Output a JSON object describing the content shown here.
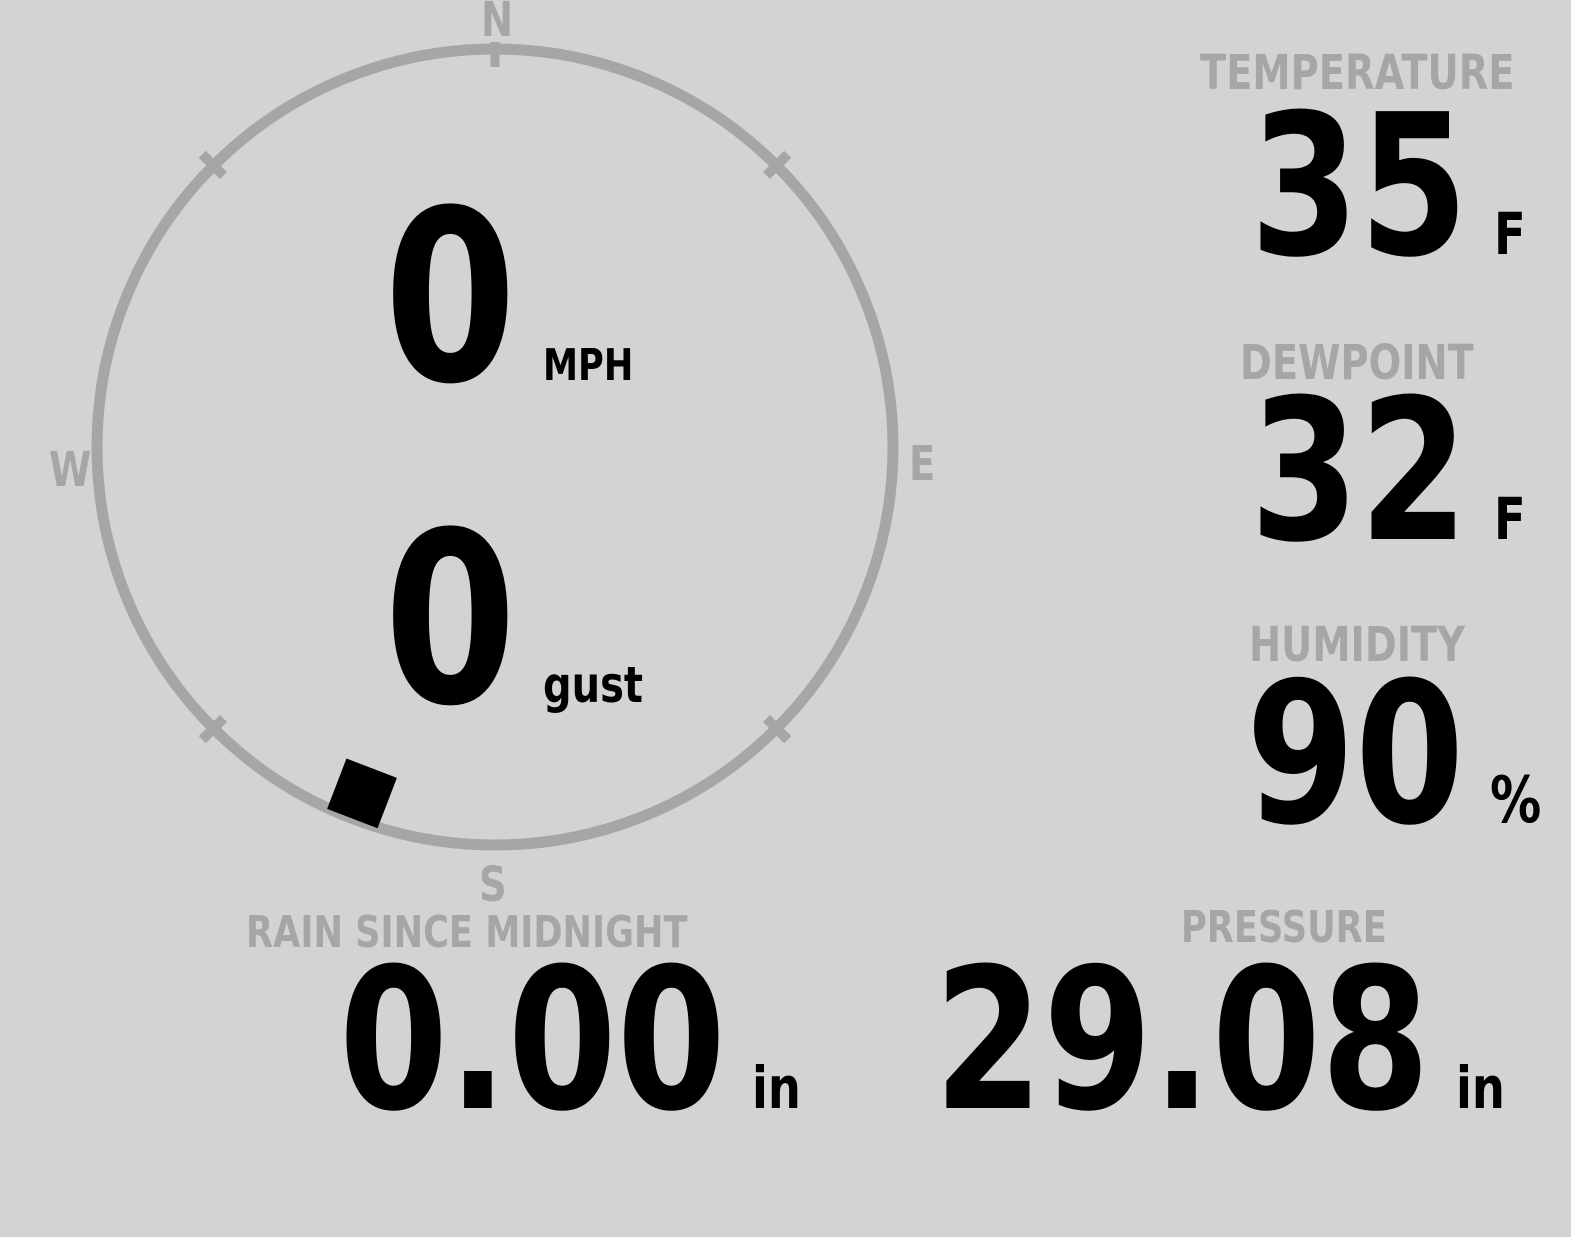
{
  "colors": {
    "background": "#d3d3d3",
    "muted": "#a6a6a6",
    "ink": "#000000"
  },
  "compass": {
    "north": "N",
    "east": "E",
    "south": "S",
    "west": "W",
    "wind_direction_deg": 201
  },
  "wind": {
    "speed": {
      "value": "0",
      "unit": "MPH"
    },
    "gust": {
      "value": "0",
      "unit": "gust"
    }
  },
  "temperature": {
    "label": "TEMPERATURE",
    "value": "35",
    "unit": "F"
  },
  "dewpoint": {
    "label": "DEWPOINT",
    "value": "32",
    "unit": "F"
  },
  "humidity": {
    "label": "HUMIDITY",
    "value": "90",
    "unit": "%"
  },
  "rain": {
    "label": "RAIN SINCE MIDNIGHT",
    "value": "0.00",
    "unit": "in"
  },
  "pressure": {
    "label": "PRESSURE",
    "value": "29.08",
    "unit": "in"
  }
}
